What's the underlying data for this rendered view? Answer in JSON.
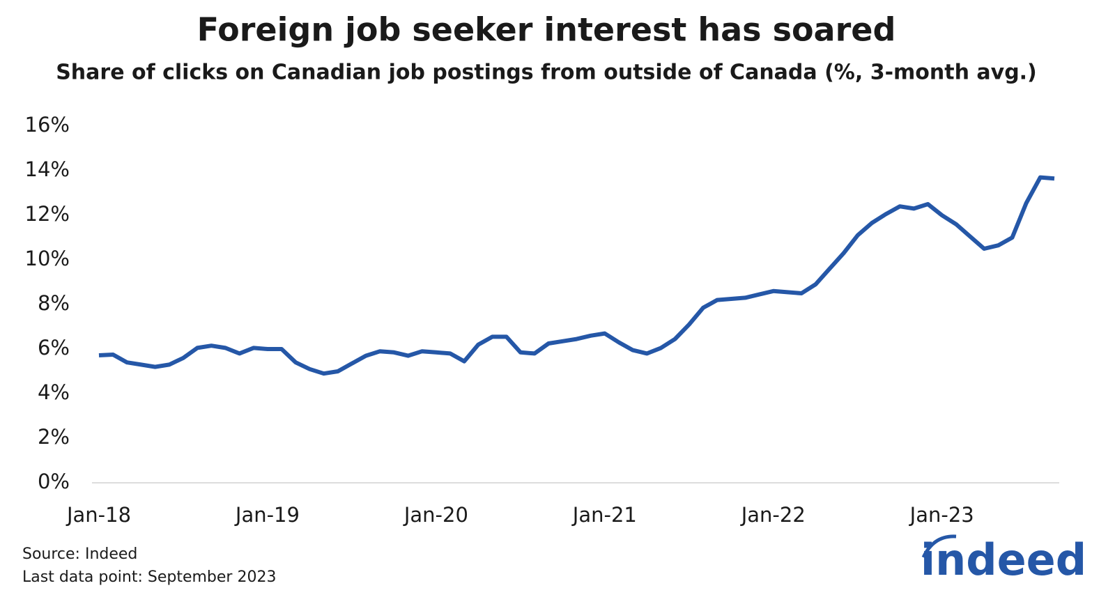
{
  "chart_data": {
    "type": "line",
    "title": "Foreign job seeker interest has soared",
    "subtitle": "Share of clicks on Canadian job postings from outside of Canada (%, 3-month avg.)",
    "categories": [
      "Jan-18",
      null,
      null,
      null,
      null,
      null,
      null,
      null,
      null,
      null,
      null,
      null,
      "Jan-19",
      null,
      null,
      null,
      null,
      null,
      null,
      null,
      null,
      null,
      null,
      null,
      "Jan-20",
      null,
      null,
      null,
      null,
      null,
      null,
      null,
      null,
      null,
      null,
      null,
      "Jan-21",
      null,
      null,
      null,
      null,
      null,
      null,
      null,
      null,
      null,
      null,
      null,
      "Jan-22",
      null,
      null,
      null,
      null,
      null,
      null,
      null,
      null,
      null,
      null,
      null,
      "Jan-23",
      null,
      null,
      null,
      null,
      null,
      null,
      null,
      null
    ],
    "series": [
      {
        "color": "#2557a7",
        "values": [
          5.72,
          5.75,
          5.4,
          5.3,
          5.2,
          5.3,
          5.6,
          6.05,
          6.15,
          6.05,
          5.8,
          6.05,
          6.0,
          6.0,
          5.4,
          5.1,
          4.9,
          5.0,
          5.35,
          5.7,
          5.9,
          5.85,
          5.7,
          5.9,
          5.85,
          5.8,
          5.45,
          6.2,
          6.55,
          6.55,
          5.85,
          5.8,
          6.25,
          6.35,
          6.45,
          6.6,
          6.7,
          6.3,
          5.95,
          5.8,
          6.05,
          6.45,
          7.1,
          7.85,
          8.2,
          8.25,
          8.3,
          8.45,
          8.6,
          8.55,
          8.5,
          8.9,
          9.6,
          10.3,
          11.1,
          11.65,
          12.05,
          12.4,
          12.3,
          12.5,
          12.0,
          11.6,
          11.05,
          10.5,
          10.65,
          11.0,
          12.55,
          13.7,
          13.65
        ]
      }
    ],
    "ylim": [
      0,
      16
    ],
    "yticks": [
      {
        "value": 0,
        "label": "0%"
      },
      {
        "value": 2,
        "label": "2%"
      },
      {
        "value": 4,
        "label": "4%"
      },
      {
        "value": 6,
        "label": "6%"
      },
      {
        "value": 8,
        "label": "8%"
      },
      {
        "value": 10,
        "label": "10%"
      },
      {
        "value": 12,
        "label": "12%"
      },
      {
        "value": 14,
        "label": "14%"
      },
      {
        "value": 16,
        "label": "16%"
      }
    ],
    "grid": false,
    "source": "Source: Indeed",
    "note": "Last data point: September 2023",
    "logo": "indeed"
  }
}
